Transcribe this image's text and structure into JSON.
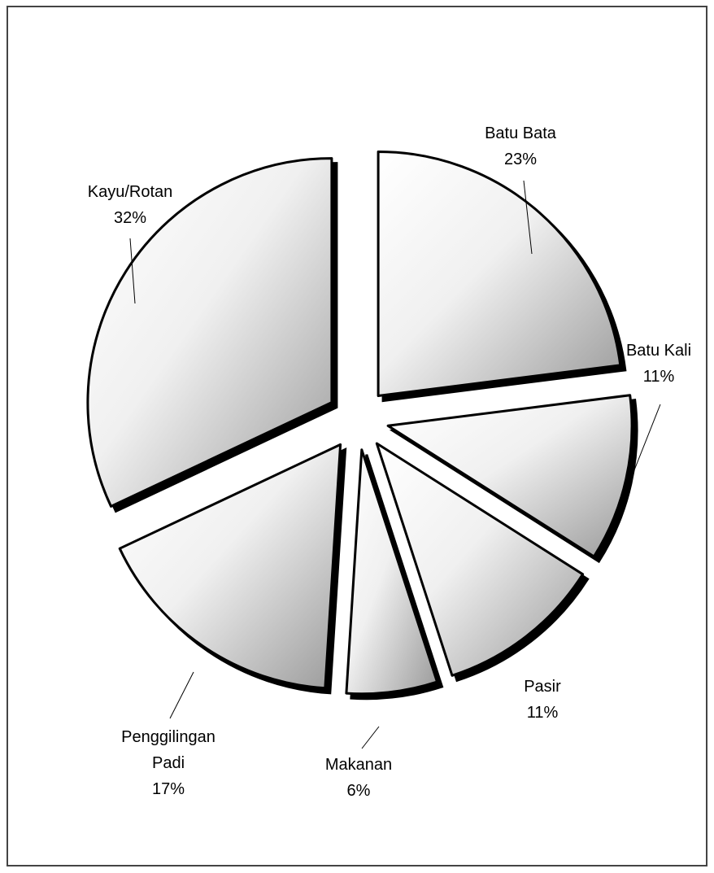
{
  "chart_data": {
    "type": "pie",
    "exploded": true,
    "style": "3d-shadow",
    "slices": [
      {
        "label": "Batu Bata",
        "value": 23,
        "value_label": "23%"
      },
      {
        "label": "Batu Kali",
        "value": 11,
        "value_label": "11%"
      },
      {
        "label": "Pasir",
        "value": 11,
        "value_label": "11%"
      },
      {
        "label": "Makanan",
        "value": 6,
        "value_label": "6%"
      },
      {
        "label": "Penggilingan Padi",
        "value": 17,
        "value_label": "17%"
      },
      {
        "label": "Kayu/Rotan",
        "value": 32,
        "value_label": "32%"
      }
    ],
    "colors": {
      "slice_fill_light": "#ffffff",
      "slice_fill_dark": "#9a9a9a",
      "outline": "#000000",
      "shadow": "#000000"
    }
  }
}
